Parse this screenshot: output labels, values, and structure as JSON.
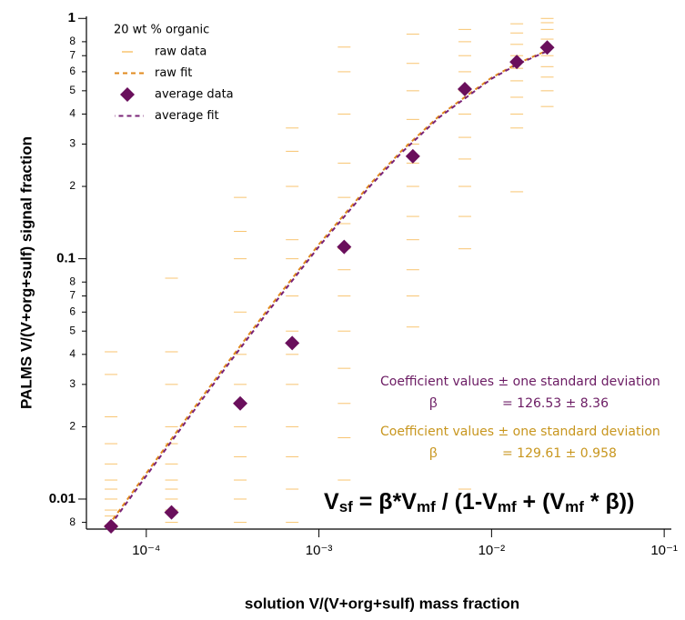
{
  "chart_data": {
    "type": "scatter",
    "xlabel": "solution V/(V+org+sulf) mass fraction",
    "ylabel": "PALMS V/(V+org+sulf) signal fraction",
    "log_x": true,
    "log_y": true,
    "xlim": [
      4.5e-05,
      0.11
    ],
    "ylim": [
      0.0075,
      1.02
    ],
    "xticks": [
      {
        "value": 0.0001,
        "label": "10⁻⁴"
      },
      {
        "value": 0.001,
        "label": "10⁻³"
      },
      {
        "value": 0.01,
        "label": "10⁻²"
      },
      {
        "value": 0.1,
        "label": "10⁻¹"
      }
    ],
    "yticks": [
      {
        "value": 0.008,
        "label": "8"
      },
      0.01,
      {
        "value": 0.02,
        "label": "2"
      },
      {
        "value": 0.03,
        "label": "3"
      },
      {
        "value": 0.04,
        "label": "4"
      },
      {
        "value": 0.05,
        "label": "5"
      },
      {
        "value": 0.06,
        "label": "6"
      },
      {
        "value": 0.07,
        "label": "7"
      },
      {
        "value": 0.08,
        "label": "8"
      },
      0.1,
      {
        "value": 0.2,
        "label": "2"
      },
      {
        "value": 0.3,
        "label": "3"
      },
      {
        "value": 0.4,
        "label": "4"
      },
      {
        "value": 0.5,
        "label": "5"
      },
      {
        "value": 0.6,
        "label": "6"
      },
      {
        "value": 0.7,
        "label": "7"
      },
      {
        "value": 0.8,
        "label": "8"
      },
      1
    ],
    "legend": {
      "title": "20 wt % organic",
      "position": "upper left"
    },
    "series": [
      {
        "name": "raw data",
        "kind": "raw",
        "color": "#f8c470",
        "groups": [
          {
            "x": 6.25e-05,
            "values": [
              0.0078,
              0.0085,
              0.009,
              0.01,
              0.011,
              0.012,
              0.014,
              0.017,
              0.022,
              0.033,
              0.041
            ]
          },
          {
            "x": 0.00014,
            "values": [
              0.008,
              0.009,
              0.01,
              0.011,
              0.012,
              0.014,
              0.017,
              0.02,
              0.03,
              0.041,
              0.083
            ]
          },
          {
            "x": 0.00035,
            "values": [
              0.008,
              0.01,
              0.012,
              0.015,
              0.02,
              0.025,
              0.03,
              0.04,
              0.06,
              0.1,
              0.13,
              0.18
            ]
          },
          {
            "x": 0.0007,
            "values": [
              0.008,
              0.011,
              0.015,
              0.02,
              0.03,
              0.04,
              0.05,
              0.07,
              0.1,
              0.12,
              0.2,
              0.28,
              0.35
            ]
          },
          {
            "x": 0.0014,
            "values": [
              0.012,
              0.018,
              0.025,
              0.035,
              0.05,
              0.07,
              0.09,
              0.11,
              0.14,
              0.18,
              0.25,
              0.4,
              0.6,
              0.76
            ]
          },
          {
            "x": 0.0035,
            "values": [
              0.052,
              0.07,
              0.09,
              0.12,
              0.15,
              0.2,
              0.25,
              0.3,
              0.38,
              0.5,
              0.65,
              0.86
            ]
          },
          {
            "x": 0.007,
            "values": [
              0.011,
              0.11,
              0.15,
              0.2,
              0.26,
              0.32,
              0.4,
              0.5,
              0.6,
              0.7,
              0.8,
              0.9
            ]
          },
          {
            "x": 0.014,
            "values": [
              0.19,
              0.35,
              0.4,
              0.47,
              0.55,
              0.62,
              0.7,
              0.78,
              0.87,
              0.95
            ]
          },
          {
            "x": 0.021,
            "values": [
              0.43,
              0.5,
              0.57,
              0.63,
              0.7,
              0.76,
              0.82,
              0.9,
              0.96,
              1.0
            ]
          }
        ]
      },
      {
        "name": "raw fit",
        "kind": "line",
        "color": "#e08a1e",
        "x": [
          6e-05,
          0.0001,
          0.0002,
          0.0003,
          0.0005,
          0.001,
          0.002,
          0.003,
          0.005,
          0.01,
          0.014,
          0.021
        ],
        "values": [
          0.00772,
          0.0128,
          0.02527,
          0.03744,
          0.0609,
          0.1148,
          0.2062,
          0.2806,
          0.3944,
          0.5669,
          0.6479,
          0.7355
        ]
      },
      {
        "name": "average data",
        "kind": "marker",
        "color": "#6a0f5c",
        "x": [
          6.25e-05,
          0.00014,
          0.00035,
          0.0007,
          0.0014,
          0.0035,
          0.007,
          0.014,
          0.021
        ],
        "values": [
          0.0077,
          0.0088,
          0.025,
          0.0446,
          0.112,
          0.267,
          0.508,
          0.659,
          0.757
        ]
      },
      {
        "name": "average fit",
        "kind": "line",
        "color": "#7a2477",
        "x": [
          6e-05,
          0.0001,
          0.0002,
          0.0003,
          0.0005,
          0.001,
          0.002,
          0.003,
          0.005,
          0.01,
          0.014,
          0.021
        ],
        "values": [
          0.00754,
          0.0125,
          0.02469,
          0.03658,
          0.0595,
          0.1124,
          0.2023,
          0.2757,
          0.3887,
          0.561,
          0.6424,
          0.7308
        ]
      }
    ],
    "annotations": [
      {
        "color": "#6b1b63",
        "heading": "Coefficient values ± one standard deviation",
        "symbol": "β",
        "value": "= 126.53 ± 8.36"
      },
      {
        "color": "#c8961e",
        "heading": "Coefficient values ± one standard deviation",
        "symbol": "β",
        "value": "= 129.61 ± 0.958"
      }
    ],
    "equation": [
      "V",
      "sf",
      " = β*V",
      "mf",
      " / (1-V",
      "mf",
      " + (V",
      "mf",
      " * β))"
    ]
  }
}
